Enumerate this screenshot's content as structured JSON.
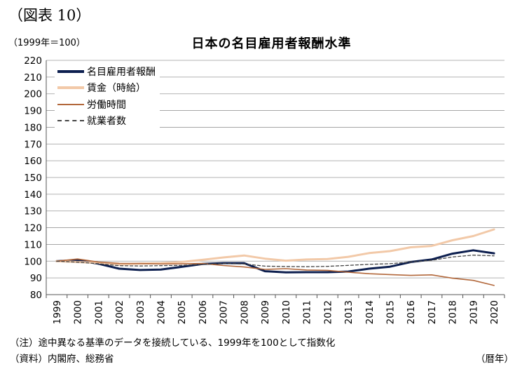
{
  "figure_label": "（図表 10）",
  "unit_label": "（1999年＝100）",
  "notes": {
    "note": "（注）途中異なる基準のデータを接続している、1999年を100として指数化",
    "source": "（資料）内閣府、総務省",
    "x_unit": "（暦年）"
  },
  "chart_data": {
    "type": "line",
    "title": "日本の名目雇用者報酬水準",
    "xlabel": "",
    "ylabel": "",
    "ylim": [
      80,
      220
    ],
    "y_ticks": [
      80,
      90,
      100,
      110,
      120,
      130,
      140,
      150,
      160,
      170,
      180,
      190,
      200,
      210,
      220
    ],
    "categories": [
      "1999",
      "2000",
      "2001",
      "2002",
      "2003",
      "2004",
      "2005",
      "2006",
      "2007",
      "2008",
      "2009",
      "2010",
      "2011",
      "2012",
      "2013",
      "2014",
      "2015",
      "2016",
      "2017",
      "2018",
      "2019",
      "2020"
    ],
    "grid": true,
    "legend_position": "top-left",
    "series": [
      {
        "name": "名目雇用者報酬",
        "color": "#0d1f4f",
        "style": "solid-thick",
        "values": [
          100,
          100.5,
          98.5,
          95.5,
          94.7,
          95.0,
          96.6,
          98.3,
          98.8,
          98.8,
          94.0,
          93.3,
          93.4,
          93.4,
          93.8,
          95.5,
          96.7,
          99.5,
          101.0,
          104.5,
          106.5,
          104.7
        ]
      },
      {
        "name": "賃金（時給）",
        "color": "#f2c9a8",
        "style": "solid-thick",
        "values": [
          100,
          99.5,
          99.0,
          98.0,
          98.5,
          98.8,
          99.5,
          100.8,
          102.2,
          103.4,
          101.5,
          100.3,
          101.0,
          101.3,
          102.6,
          104.8,
          106.0,
          108.3,
          109.1,
          112.5,
          115.0,
          119.0
        ]
      },
      {
        "name": "労働時間",
        "color": "#b2673a",
        "style": "solid-thin",
        "values": [
          100,
          101.3,
          99.5,
          98.7,
          98.6,
          98.3,
          98.4,
          98.6,
          97.4,
          96.5,
          95.1,
          95.5,
          94.7,
          94.5,
          93.4,
          92.5,
          92.0,
          91.5,
          91.8,
          89.8,
          88.5,
          85.5
        ]
      },
      {
        "name": "就業者数",
        "color": "#444444",
        "style": "dashed",
        "values": [
          100,
          99.4,
          98.5,
          97.3,
          97.1,
          97.3,
          97.5,
          98.1,
          98.6,
          98.3,
          97.0,
          96.8,
          96.7,
          96.9,
          97.5,
          98.1,
          98.5,
          99.5,
          100.5,
          102.5,
          103.6,
          103.2
        ]
      }
    ]
  }
}
